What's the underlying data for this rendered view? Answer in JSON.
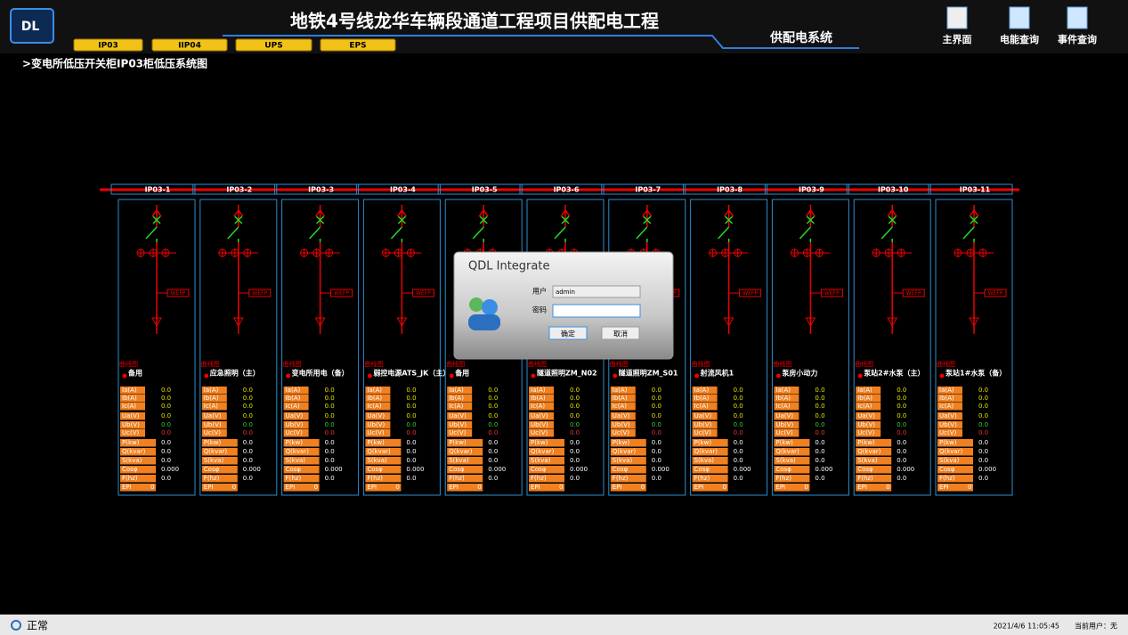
{
  "header": {
    "title": "地铁4号线龙华车辆段通道工程项目供配电工程",
    "subtitle": "供配电系统",
    "tabs": [
      "IP03",
      "IIP04",
      "UPS",
      "EPS"
    ],
    "nav": [
      "主界面",
      "电能查询",
      "事件查询"
    ]
  },
  "breadcrumb": ">变电所低压开关柜IP03柜低压系统图",
  "breaker_label": "WEFP",
  "curve_label": "曲线图",
  "measure_labels": [
    "Ia(A)",
    "Ib(A)",
    "Ic(A)",
    "Ua(V)",
    "Ub(V)",
    "Uc(V)",
    "P(kw)",
    "Q(kvar)",
    "S(kva)",
    "Cosφ",
    "F(hz)",
    "EPI"
  ],
  "panels": [
    {
      "id": "IP03-1",
      "name": "备用",
      "values": [
        "0.0",
        "0.0",
        "0.0",
        "0.0",
        "0.0",
        "0.0",
        "0.0",
        "0.0",
        "0.0",
        "0.000",
        "0.0",
        "0"
      ]
    },
    {
      "id": "IP03-2",
      "name": "应急照明（主）",
      "values": [
        "0.0",
        "0.0",
        "0.0",
        "0.0",
        "0.0",
        "0.0",
        "0.0",
        "0.0",
        "0.0",
        "0.000",
        "0.0",
        "0"
      ]
    },
    {
      "id": "IP03-3",
      "name": "变电所用电（备）",
      "values": [
        "0.0",
        "0.0",
        "0.0",
        "0.0",
        "0.0",
        "0.0",
        "0.0",
        "0.0",
        "0.0",
        "0.000",
        "0.0",
        "0"
      ]
    },
    {
      "id": "IP03-4",
      "name": "弱控电源ATS_JK（主）",
      "values": [
        "0.0",
        "0.0",
        "0.0",
        "0.0",
        "0.0",
        "0.0",
        "0.0",
        "0.0",
        "0.0",
        "0.000",
        "0.0",
        "0"
      ]
    },
    {
      "id": "IP03-5",
      "name": "备用",
      "values": [
        "0.0",
        "0.0",
        "0.0",
        "0.0",
        "0.0",
        "0.0",
        "0.0",
        "0.0",
        "0.0",
        "0.000",
        "0.0",
        "0"
      ]
    },
    {
      "id": "IP03-6",
      "name": "隧道照明ZM_N02",
      "values": [
        "0.0",
        "0.0",
        "0.0",
        "0.0",
        "0.0",
        "0.0",
        "0.0",
        "0.0",
        "0.0",
        "0.000",
        "0.0",
        "0"
      ]
    },
    {
      "id": "IP03-7",
      "name": "隧道照明ZM_S01",
      "values": [
        "0.0",
        "0.0",
        "0.0",
        "0.0",
        "0.0",
        "0.0",
        "0.0",
        "0.0",
        "0.0",
        "0.000",
        "0.0",
        "0"
      ]
    },
    {
      "id": "IP03-8",
      "name": "射流风机1",
      "values": [
        "0.0",
        "0.0",
        "0.0",
        "0.0",
        "0.0",
        "0.0",
        "0.0",
        "0.0",
        "0.0",
        "0.000",
        "0.0",
        "0"
      ]
    },
    {
      "id": "IP03-9",
      "name": "泵房小动力",
      "values": [
        "0.0",
        "0.0",
        "0.0",
        "0.0",
        "0.0",
        "0.0",
        "0.0",
        "0.0",
        "0.0",
        "0.000",
        "0.0",
        "0"
      ]
    },
    {
      "id": "IP03-10",
      "name": "泵站2#水泵（主）",
      "values": [
        "0.0",
        "0.0",
        "0.0",
        "0.0",
        "0.0",
        "0.0",
        "0.0",
        "0.0",
        "0.0",
        "0.000",
        "0.0",
        "0"
      ]
    },
    {
      "id": "IP03-11",
      "name": "泵站1#水泵（备）",
      "values": [
        "0.0",
        "0.0",
        "0.0",
        "0.0",
        "0.0",
        "0.0",
        "0.0",
        "0.0",
        "0.0",
        "0.000",
        "0.0",
        "0"
      ]
    }
  ],
  "dialog": {
    "title": "QDL Integrate",
    "user_label": "用户",
    "user_value": "admin",
    "password_label": "密码",
    "ok": "确定",
    "cancel": "取消"
  },
  "status": {
    "state": "正常",
    "datetime": "2021/4/6 11:05:45",
    "user": "当前用户：无"
  }
}
